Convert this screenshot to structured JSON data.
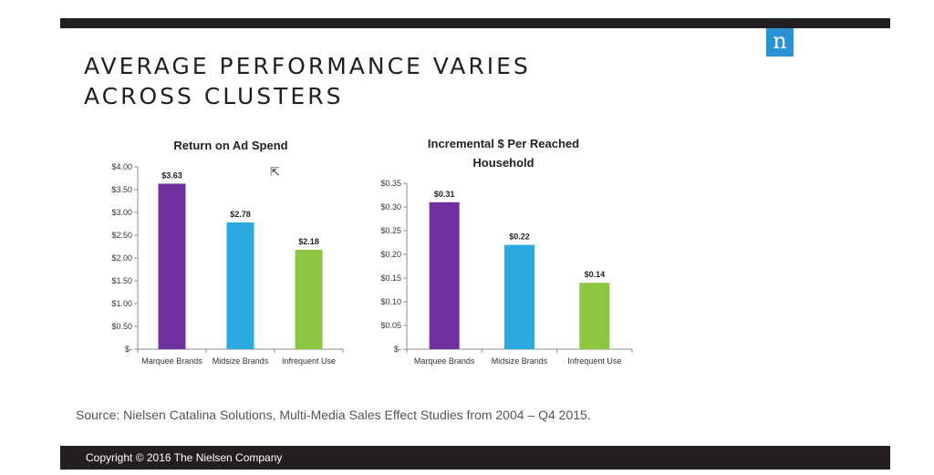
{
  "header": {
    "title_line1": "AVERAGE PERFORMANCE VARIES",
    "title_line2": "ACROSS CLUSTERS",
    "logo_letter": "n",
    "logo_color": "#2a93d5"
  },
  "colors": {
    "marquee": "#7030a0",
    "midsize": "#29abe2",
    "infrequent": "#8dc63f"
  },
  "chart_data": [
    {
      "type": "bar",
      "title": "Return on Ad Spend",
      "categories": [
        "Marquee Brands",
        "Midsize Brands",
        "Infrequent Use"
      ],
      "values": [
        3.63,
        2.78,
        2.18
      ],
      "data_labels": [
        "$3.63",
        "$2.78",
        "$2.18"
      ],
      "ylim": [
        0,
        4.0
      ],
      "yticks": [
        0,
        0.5,
        1.0,
        1.5,
        2.0,
        2.5,
        3.0,
        3.5,
        4.0
      ],
      "ytick_labels": [
        "$-",
        "$0.50",
        "$1.00",
        "$1.50",
        "$2.00",
        "$2.50",
        "$3.00",
        "$3.50",
        "$4.00"
      ],
      "grid": false,
      "xlabel": "",
      "ylabel": ""
    },
    {
      "type": "bar",
      "title": "Incremental $ Per Reached Household",
      "categories": [
        "Marquee Brands",
        "Midsize Brands",
        "Infrequent Use"
      ],
      "values": [
        0.31,
        0.22,
        0.14
      ],
      "data_labels": [
        "$0.31",
        "$0.22",
        "$0.14"
      ],
      "ylim": [
        0,
        0.35
      ],
      "yticks": [
        0,
        0.05,
        0.1,
        0.15,
        0.2,
        0.25,
        0.3,
        0.35
      ],
      "ytick_labels": [
        "$-",
        "$0.05",
        "$0.10",
        "$0.15",
        "$0.20",
        "$0.25",
        "$0.30",
        "$0.35"
      ],
      "grid": false,
      "xlabel": "",
      "ylabel": ""
    }
  ],
  "source": "Source: Nielsen Catalina Solutions, Multi-Media Sales Effect Studies from 2004 – Q4 2015.",
  "footer": {
    "copyright": "Copyright © 2016 The Nielsen Company"
  }
}
